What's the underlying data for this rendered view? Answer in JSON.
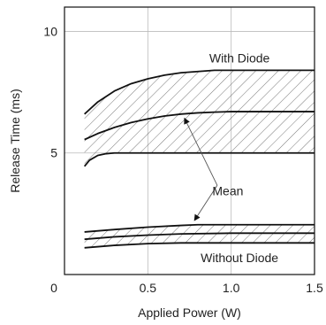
{
  "chart_data": {
    "type": "line",
    "title": "",
    "xlabel": "Applied Power (W)",
    "ylabel": "Release Time (ms)",
    "xlim": [
      0,
      1.5
    ],
    "ylim": [
      0,
      11
    ],
    "x_ticks": [
      {
        "value": 0,
        "label": "0"
      },
      {
        "value": 0.5,
        "label": "0.5"
      },
      {
        "value": 1.0,
        "label": "1.0"
      },
      {
        "value": 1.5,
        "label": "1.5"
      }
    ],
    "y_ticks": [
      {
        "value": 5,
        "label": "5"
      },
      {
        "value": 10,
        "label": "10"
      }
    ],
    "grid": true,
    "series": [
      {
        "group": "with-diode",
        "role": "upper",
        "x": [
          0.12,
          0.2,
          0.3,
          0.4,
          0.5,
          0.6,
          0.7,
          0.8,
          0.9,
          1.0,
          1.2,
          1.5
        ],
        "y": [
          6.6,
          7.1,
          7.55,
          7.85,
          8.05,
          8.2,
          8.3,
          8.35,
          8.4,
          8.4,
          8.4,
          8.4
        ]
      },
      {
        "group": "with-diode",
        "role": "mean",
        "x": [
          0.12,
          0.2,
          0.3,
          0.4,
          0.5,
          0.6,
          0.7,
          0.8,
          0.9,
          1.0,
          1.2,
          1.5
        ],
        "y": [
          5.55,
          5.8,
          6.05,
          6.25,
          6.4,
          6.52,
          6.6,
          6.65,
          6.68,
          6.7,
          6.7,
          6.7
        ]
      },
      {
        "group": "with-diode",
        "role": "lower",
        "x": [
          0.12,
          0.15,
          0.2,
          0.25,
          0.3,
          0.4,
          0.5,
          1.0,
          1.5
        ],
        "y": [
          4.45,
          4.7,
          4.9,
          4.97,
          5.0,
          5.0,
          5.0,
          5.0,
          5.0
        ]
      },
      {
        "group": "without-diode",
        "role": "upper",
        "x": [
          0.12,
          0.3,
          0.5,
          0.7,
          0.8,
          1.0,
          1.5
        ],
        "y": [
          1.75,
          1.85,
          1.95,
          2.02,
          2.05,
          2.05,
          2.05
        ]
      },
      {
        "group": "without-diode",
        "role": "mean",
        "x": [
          0.12,
          0.3,
          0.5,
          0.7,
          1.0,
          1.5
        ],
        "y": [
          1.45,
          1.55,
          1.62,
          1.67,
          1.7,
          1.7
        ]
      },
      {
        "group": "without-diode",
        "role": "lower",
        "x": [
          0.12,
          0.3,
          0.5,
          0.7,
          1.0,
          1.5
        ],
        "y": [
          1.1,
          1.2,
          1.27,
          1.3,
          1.3,
          1.3
        ]
      }
    ],
    "bands": [
      {
        "group": "with-diode",
        "between": [
          "upper",
          "lower"
        ],
        "fill": "hatched"
      },
      {
        "group": "without-diode",
        "between": [
          "upper",
          "lower"
        ],
        "fill": "hatched"
      }
    ],
    "annotations": [
      {
        "text": "With Diode",
        "x": 1.05,
        "y": 8.9
      },
      {
        "text": "Mean",
        "x": 0.98,
        "y": 3.45
      },
      {
        "text": "Without Diode",
        "x": 1.05,
        "y": 0.7
      }
    ],
    "pointers": [
      {
        "to_group": "with-diode",
        "to_role": "mean",
        "to_x": 0.72
      },
      {
        "to_group": "without-diode",
        "to_role": "upper",
        "to_x": 0.78
      }
    ],
    "colors": {
      "line": "#111111",
      "grid": "#bbbbbb",
      "hatch": "#555555",
      "pointer": "#555555"
    }
  }
}
